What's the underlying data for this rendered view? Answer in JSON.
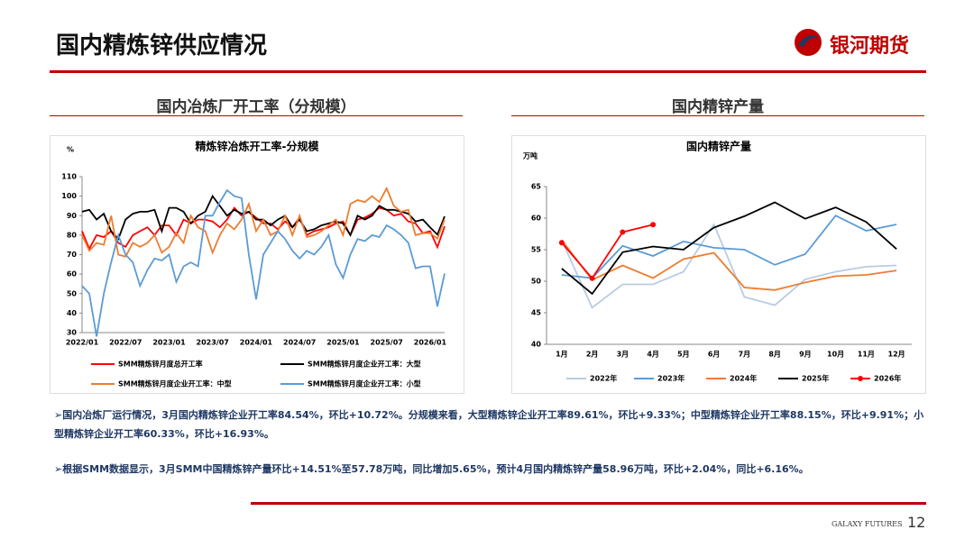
{
  "header": {
    "title": "国内精炼锌供应情况",
    "logo": "银河期货"
  },
  "sections": [
    "国内冶炼厂开工率（分规模）",
    "国内精锌产量"
  ],
  "chart_data": [
    {
      "type": "line",
      "title": "精炼锌冶炼开工率-分规模",
      "y_label": "%",
      "categories": [
        "2022/01",
        null,
        null,
        null,
        null,
        null,
        "2022/07",
        null,
        null,
        null,
        null,
        null,
        "2023/01",
        null,
        null,
        null,
        null,
        null,
        "2023/07",
        null,
        null,
        null,
        null,
        null,
        "2024/01",
        null,
        null,
        null,
        null,
        null,
        "2024/07",
        null,
        null,
        null,
        null,
        null,
        "2025/01",
        null,
        null,
        null,
        null,
        null,
        "2025/07",
        null,
        null,
        null,
        null,
        null,
        "2026/01",
        null,
        null
      ],
      "ylim": [
        30,
        110
      ],
      "yticks": [
        30,
        40,
        50,
        60,
        70,
        80,
        90,
        100,
        110
      ],
      "series": [
        {
          "name": "SMM精炼锌月度总开工率",
          "color": "#ff0000",
          "values": [
            82,
            73,
            80,
            79,
            82,
            76,
            74,
            80,
            82,
            84,
            80,
            85,
            85,
            80,
            88,
            86,
            88,
            88,
            87,
            84,
            88,
            94,
            90,
            92,
            89,
            86,
            86,
            83,
            87,
            84,
            89,
            80,
            82,
            83,
            84,
            86,
            87,
            80,
            88,
            89,
            91,
            94,
            93,
            90,
            91,
            87,
            86,
            81,
            82,
            73.82,
            84.54
          ]
        },
        {
          "name": "SMM精炼锌月度企业开工率：大型",
          "color": "#000000",
          "values": [
            92,
            93,
            88,
            91,
            82,
            78,
            88,
            91,
            92,
            92,
            93,
            82,
            94,
            94,
            92,
            86,
            90,
            92,
            100,
            95,
            90,
            93,
            91,
            92,
            88,
            88,
            85,
            88,
            90,
            84,
            88,
            82,
            83,
            85,
            86,
            87,
            86,
            80,
            90,
            88,
            90,
            95,
            93,
            93,
            92,
            91,
            87,
            88,
            84,
            80.28,
            89.61
          ]
        },
        {
          "name": "SMM精炼锌月度企业开工率：中型",
          "color": "#ed7d31",
          "values": [
            80,
            72,
            76,
            75,
            90,
            70,
            69,
            76,
            74,
            76,
            80,
            71,
            74,
            81,
            76,
            90,
            84,
            82,
            71,
            80,
            86,
            83,
            88,
            96,
            82,
            88,
            80,
            82,
            90,
            80,
            90,
            79,
            80,
            82,
            85,
            88,
            80,
            96,
            98,
            97,
            100,
            97,
            104,
            95,
            92,
            93,
            80,
            81,
            81,
            78.24,
            88.15
          ]
        },
        {
          "name": "SMM精炼锌月度企业开工率：小型",
          "color": "#5b9bd5",
          "values": [
            54,
            50,
            28,
            50,
            66,
            80,
            70,
            66,
            54,
            62,
            68,
            67,
            70,
            56,
            64,
            66,
            64,
            90,
            90,
            97,
            103,
            100,
            99,
            70,
            47,
            70,
            76,
            82,
            78,
            72,
            68,
            72,
            70,
            74,
            80,
            65,
            58,
            70,
            78,
            77,
            80,
            79,
            85,
            83,
            80,
            76,
            63,
            64,
            64,
            43.4,
            60.33
          ]
        }
      ]
    },
    {
      "type": "line",
      "title": "国内精锌产量",
      "y_label": "万吨",
      "categories": [
        "1月",
        "2月",
        "3月",
        "4月",
        "5月",
        "6月",
        "7月",
        "8月",
        "9月",
        "10月",
        "11月",
        "12月"
      ],
      "ylim": [
        40,
        65
      ],
      "yticks": [
        40,
        45,
        50,
        55,
        60,
        65
      ],
      "series": [
        {
          "name": "2022年",
          "color": "#b8cce4",
          "values": [
            56.5,
            45.8,
            49.5,
            49.5,
            51.5,
            59,
            47.5,
            46.2,
            50.3,
            51.5,
            52.3,
            52.5
          ]
        },
        {
          "name": "2023年",
          "color": "#5b9bd5",
          "values": [
            51,
            50.5,
            55.6,
            54,
            56.3,
            55.3,
            55,
            52.6,
            54.3,
            60.4,
            58,
            59
          ]
        },
        {
          "name": "2024年",
          "color": "#ed7d31",
          "values": [
            56.5,
            50.2,
            52.5,
            50.5,
            53.5,
            54.5,
            49,
            48.6,
            49.8,
            50.8,
            51,
            51.7
          ]
        },
        {
          "name": "2025年",
          "color": "#000000",
          "values": [
            52,
            48,
            54.6,
            55.5,
            55,
            58.5,
            60.3,
            62.5,
            59.9,
            61.7,
            59.4,
            55.1
          ]
        },
        {
          "name": "2026年",
          "color": "#ff0000",
          "markers": true,
          "values": [
            56.1,
            50.46,
            57.78,
            58.96,
            null,
            null,
            null,
            null,
            null,
            null,
            null,
            null
          ]
        }
      ]
    }
  ],
  "paragraphs": [
    "国内冶炼厂运行情况，3月国内精炼锌企业开工率84.54%，环比+10.72%。分规模来看，大型精炼锌企业开工率89.61%，环比+9.33%；中型精炼锌企业开工率88.15%，环比+9.91%；小型精炼锌企业开工率60.33%，环比+16.93%。",
    "根据SMM数据显示，3月SMM中国精炼锌产量环比+14.51%至57.78万吨，同比增加5.65%，预计4月国内精炼锌产量58.96万吨，环比+2.04%，同比+6.16%。"
  ],
  "footer": {
    "brand": "GALAXY FUTURES",
    "page": "12"
  }
}
